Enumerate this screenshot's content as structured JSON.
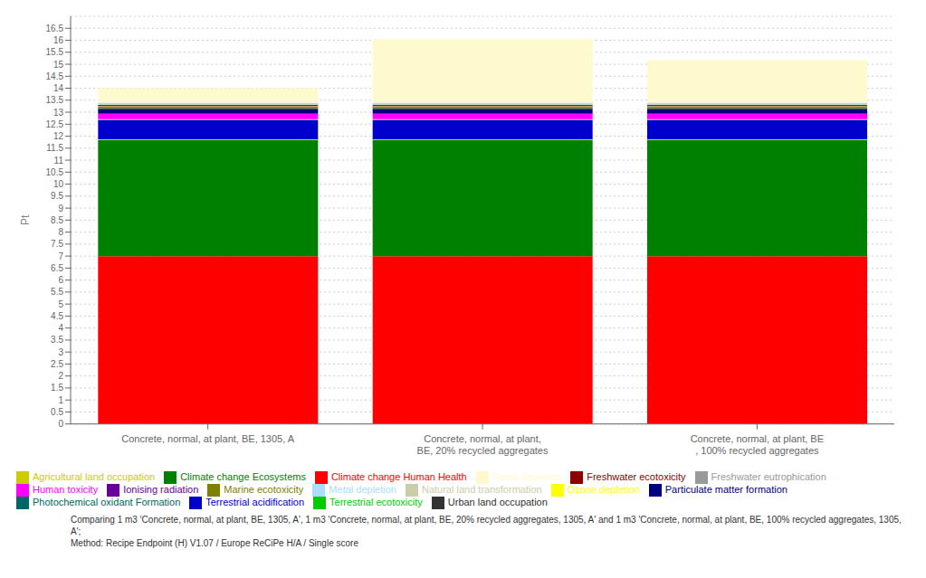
{
  "chart_data": {
    "type": "bar",
    "stacked": true,
    "grid": true,
    "legend": "bottom",
    "ylabel": "Pt",
    "categories": [
      "Concrete, normal, at plant, BE, 1305, A",
      "Concrete, normal, at plant,\nBE, 20% recycled aggregates",
      "Concrete, normal, at plant, BE\n, 100% recycled aggregates"
    ],
    "series": [
      {
        "name": "Climate change Human Health",
        "color": "#FF0000",
        "values": [
          7.0,
          7.0,
          7.0
        ]
      },
      {
        "name": "Climate change Ecosystems",
        "color": "#008000",
        "values": [
          4.85,
          4.85,
          4.85
        ]
      },
      {
        "name": "Ozone depletion",
        "color": "#FFFF00",
        "values": [
          0.02,
          0.02,
          0.02
        ]
      },
      {
        "name": "Terrestrial acidification",
        "color": "#0000CC",
        "values": [
          0.8,
          0.8,
          0.8
        ]
      },
      {
        "name": "Freshwater eutrophication",
        "color": "#999999",
        "values": [
          0.04,
          0.04,
          0.04
        ]
      },
      {
        "name": "Human toxicity",
        "color": "#FF00FF",
        "values": [
          0.22,
          0.22,
          0.22
        ]
      },
      {
        "name": "Photochemical oxidant Formation",
        "color": "#006666",
        "values": [
          0.03,
          0.03,
          0.03
        ]
      },
      {
        "name": "Particulate matter formation",
        "color": "#000080",
        "values": [
          0.18,
          0.18,
          0.18
        ]
      },
      {
        "name": "Terrestrial ecotoxicity",
        "color": "#00CC00",
        "values": [
          0.03,
          0.03,
          0.03
        ]
      },
      {
        "name": "Freshwater ecotoxicity",
        "color": "#8B0000",
        "values": [
          0.04,
          0.04,
          0.04
        ]
      },
      {
        "name": "Marine ecotoxicity",
        "color": "#808000",
        "values": [
          0.02,
          0.02,
          0.02
        ]
      },
      {
        "name": "Ionising radiation",
        "color": "#660099",
        "values": [
          0.02,
          0.02,
          0.02
        ]
      },
      {
        "name": "Agricultural land occupation",
        "color": "#CCCC00",
        "values": [
          0.02,
          0.02,
          0.02
        ]
      },
      {
        "name": "Urban land occupation",
        "color": "#333333",
        "values": [
          0.03,
          0.03,
          0.03
        ]
      },
      {
        "name": "Natural land transformation",
        "color": "#CCCCAA",
        "values": [
          0.03,
          0.03,
          0.03
        ]
      },
      {
        "name": "Metal depletion",
        "color": "#AADDFF",
        "values": [
          0.07,
          0.07,
          0.07
        ]
      },
      {
        "name": "Fossil depletion",
        "color": "#FFFACD",
        "values": [
          0.6,
          2.65,
          1.77
        ]
      }
    ],
    "ylim": [
      0,
      17.0
    ],
    "yticks": [
      0,
      0.5,
      1,
      1.5,
      2,
      2.5,
      3,
      3.5,
      4,
      4.5,
      5,
      5.5,
      6,
      6.5,
      7,
      7.5,
      8,
      8.5,
      9,
      9.5,
      10,
      10.5,
      11,
      11.5,
      12,
      12.5,
      13,
      13.5,
      14,
      14.5,
      15,
      15.5,
      16,
      16.5
    ],
    "annotations": [
      "Comparing 1 m3 'Concrete, normal, at plant, BE, 1305, A', 1 m3 'Concrete, normal, at plant, BE, 20% recycled aggregates, 1305, A' and 1 m3 'Concrete, normal, at plant, BE, 100% recycled aggregates, 1305, A';",
      "Method: Recipe Endpoint (H) V1.07 / Europe ReCiPe H/A / Single score"
    ]
  }
}
